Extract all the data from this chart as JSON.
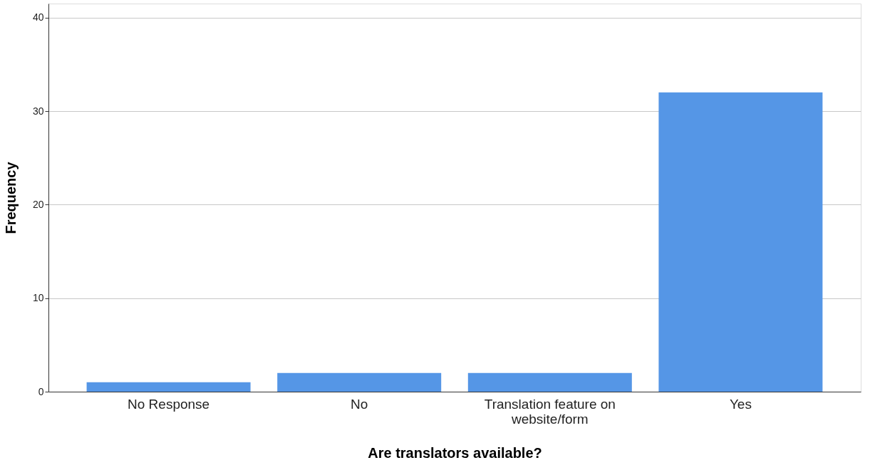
{
  "chart_data": {
    "type": "bar",
    "xlabel": "Are translators available?",
    "ylabel": "Frequency",
    "categories": [
      "No Response",
      "No",
      "Translation feature on website/form",
      "Yes"
    ],
    "values": [
      1,
      2,
      2,
      32
    ],
    "color": "#5596e6",
    "ylim": [
      0,
      41.5
    ],
    "yticks": [
      0,
      10,
      20,
      30,
      40
    ],
    "grid": "y"
  }
}
